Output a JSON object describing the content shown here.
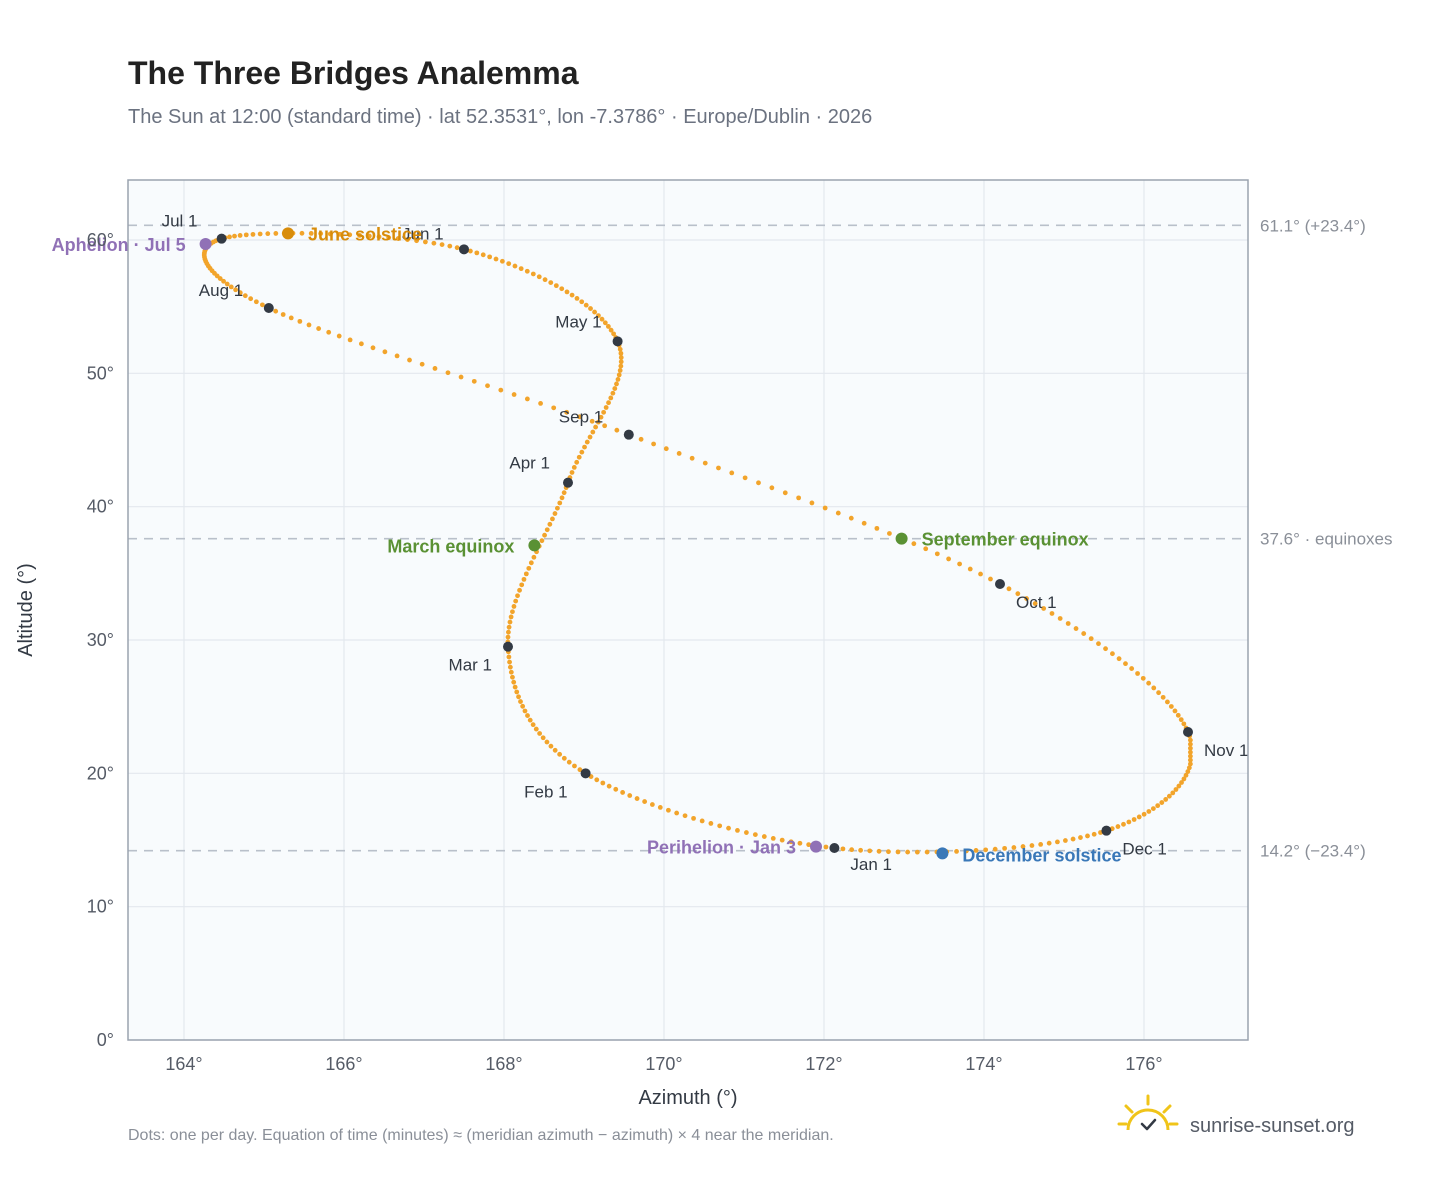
{
  "header": {
    "title": "The Three Bridges Analemma",
    "subtitle": "The Sun at 12:00 (standard time) · lat 52.3531°, lon -7.3786° · Europe/Dublin · 2026"
  },
  "footer": {
    "note": "Dots: one per day. Equation of time (minutes) ≈ (meridian azimuth − azimuth) × 4 near the meridian.",
    "brand": "sunrise-sunset.org",
    "brand_icon": "sun-check-icon"
  },
  "colors": {
    "curve": "#f2a42b",
    "month_marker": "#333a44",
    "june_solstice": "#d88c0a",
    "december_solstice": "#3a78b8",
    "equinox": "#5a9134",
    "apsis": "#9071b6",
    "plot_bg": "#f8fbfd",
    "grid": "#e3e8ee",
    "reference_line": "#b9c0ca"
  },
  "chart_data": {
    "type": "scatter",
    "title": "The Three Bridges Analemma",
    "xlabel": "Azimuth (°)",
    "ylabel": "Altitude (°)",
    "xlim": [
      163.3,
      177.3
    ],
    "ylim": [
      0,
      64.5
    ],
    "x_ticks": [
      164,
      166,
      168,
      170,
      172,
      174,
      176
    ],
    "y_ticks": [
      0,
      10,
      20,
      30,
      40,
      50,
      60
    ],
    "x_tick_labels": [
      "164°",
      "166°",
      "168°",
      "170°",
      "172°",
      "174°",
      "176°"
    ],
    "y_tick_labels": [
      "0°",
      "10°",
      "20°",
      "30°",
      "40°",
      "50°",
      "60°"
    ],
    "grid": true,
    "daily_points_note": "one dot per day",
    "monthly_markers": [
      {
        "label": "Jan 1",
        "azimuth": 172.13,
        "altitude": 14.4
      },
      {
        "label": "Feb 1",
        "azimuth": 169.02,
        "altitude": 20.0
      },
      {
        "label": "Mar 1",
        "azimuth": 168.05,
        "altitude": 29.5
      },
      {
        "label": "Apr 1",
        "azimuth": 168.8,
        "altitude": 41.8
      },
      {
        "label": "May 1",
        "azimuth": 169.42,
        "altitude": 52.4
      },
      {
        "label": "Jun 1",
        "azimuth": 167.5,
        "altitude": 59.3
      },
      {
        "label": "Jul 1",
        "azimuth": 164.47,
        "altitude": 60.1
      },
      {
        "label": "Aug 1",
        "azimuth": 165.06,
        "altitude": 54.9
      },
      {
        "label": "Sep 1",
        "azimuth": 169.56,
        "altitude": 45.4
      },
      {
        "label": "Oct 1",
        "azimuth": 174.2,
        "altitude": 34.2
      },
      {
        "label": "Nov 1",
        "azimuth": 176.55,
        "altitude": 23.1
      },
      {
        "label": "Dec 1",
        "azimuth": 175.53,
        "altitude": 15.7
      }
    ],
    "events": [
      {
        "label": "June solstice",
        "azimuth": 165.3,
        "altitude": 60.5,
        "color_key": "june_solstice"
      },
      {
        "label": "December solstice",
        "azimuth": 173.48,
        "altitude": 14.0,
        "color_key": "december_solstice"
      },
      {
        "label": "March equinox",
        "azimuth": 168.38,
        "altitude": 37.1,
        "color_key": "equinox"
      },
      {
        "label": "September equinox",
        "azimuth": 172.97,
        "altitude": 37.6,
        "color_key": "equinox"
      },
      {
        "label": "Perihelion · Jan 3",
        "azimuth": 171.9,
        "altitude": 14.5,
        "color_key": "apsis"
      },
      {
        "label": "Aphelion · Jul 5",
        "azimuth": 164.27,
        "altitude": 59.7,
        "color_key": "apsis"
      }
    ],
    "reference_lines": [
      {
        "altitude": 61.1,
        "label": "61.1° (+23.4°)"
      },
      {
        "altitude": 37.6,
        "label": "37.6° · equinoxes"
      },
      {
        "altitude": 14.2,
        "label": "14.2° (−23.4°)"
      }
    ],
    "curve_extremes": {
      "min_azimuth": 164.1,
      "max_azimuth": 176.58
    }
  }
}
